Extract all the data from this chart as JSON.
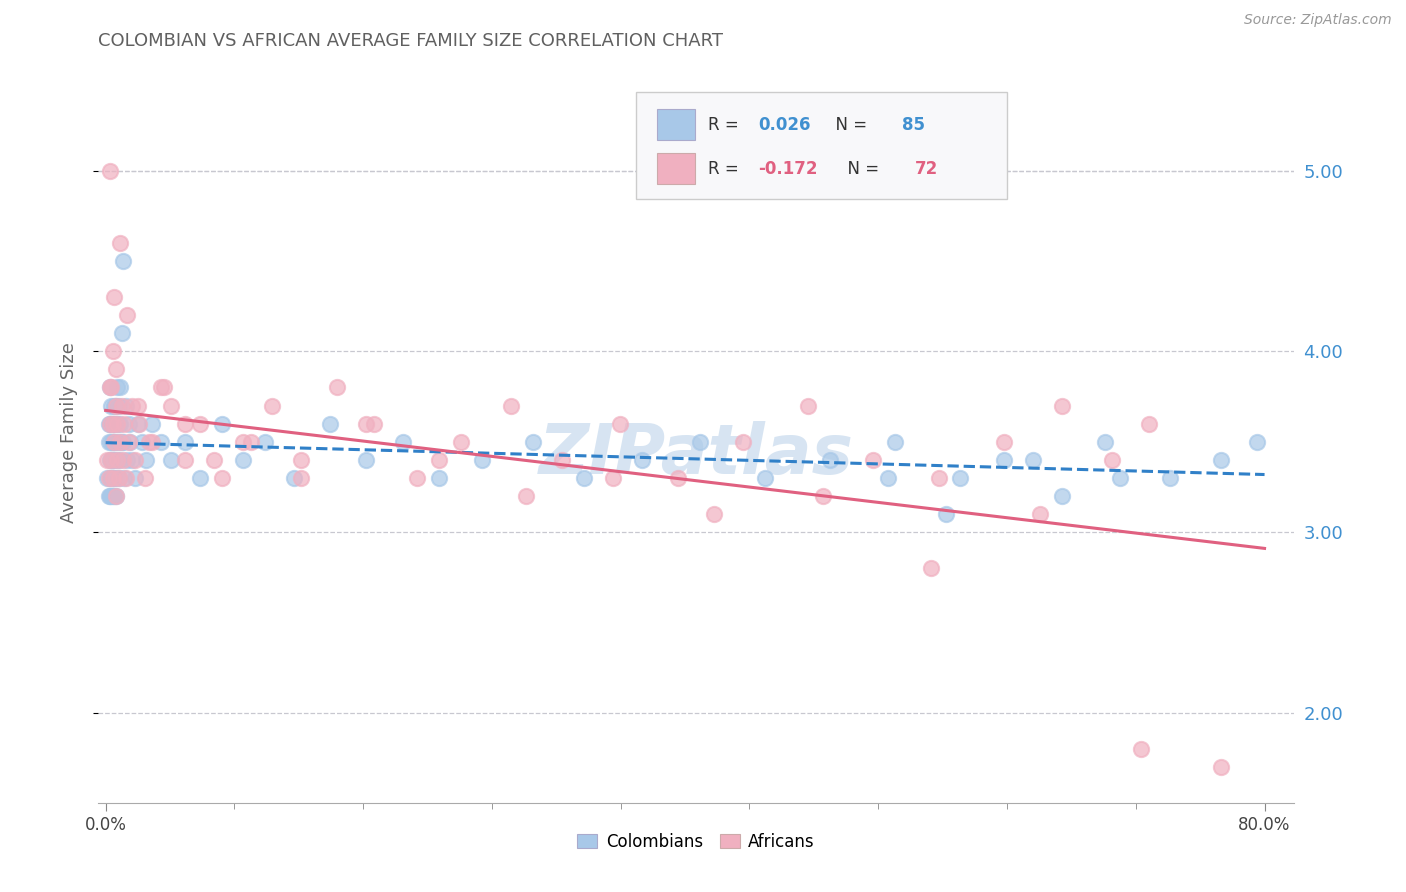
{
  "title": "COLOMBIAN VS AFRICAN AVERAGE FAMILY SIZE CORRELATION CHART",
  "source_text": "Source: ZipAtlas.com",
  "ylabel": "Average Family Size",
  "xlim": [
    -0.005,
    0.82
  ],
  "ylim": [
    1.5,
    5.6
  ],
  "yticks": [
    2.0,
    3.0,
    4.0,
    5.0
  ],
  "xtick_positions": [
    0.0,
    0.8
  ],
  "xtick_labels": [
    "0.0%",
    "80.0%"
  ],
  "right_ytick_labels": [
    "2.00",
    "3.00",
    "4.00",
    "5.00"
  ],
  "colombian_R": 0.026,
  "colombian_N": 85,
  "african_R": -0.172,
  "african_N": 72,
  "colombian_dot_color": "#a8c8e8",
  "african_dot_color": "#f0b0c0",
  "colombian_line_color": "#3080c8",
  "african_line_color": "#e06080",
  "title_color": "#606060",
  "axis_label_color": "#4090d0",
  "grid_color": "#c8c8d0",
  "background_color": "#ffffff",
  "watermark_color": "#d0e0f0",
  "colombian_x": [
    0.001,
    0.002,
    0.002,
    0.002,
    0.003,
    0.003,
    0.003,
    0.003,
    0.003,
    0.004,
    0.004,
    0.004,
    0.004,
    0.004,
    0.004,
    0.005,
    0.005,
    0.005,
    0.005,
    0.005,
    0.005,
    0.006,
    0.006,
    0.006,
    0.006,
    0.006,
    0.007,
    0.007,
    0.007,
    0.007,
    0.008,
    0.008,
    0.008,
    0.009,
    0.009,
    0.009,
    0.01,
    0.01,
    0.01,
    0.011,
    0.011,
    0.012,
    0.012,
    0.013,
    0.014,
    0.015,
    0.016,
    0.017,
    0.018,
    0.02,
    0.022,
    0.025,
    0.028,
    0.032,
    0.038,
    0.045,
    0.055,
    0.065,
    0.08,
    0.095,
    0.11,
    0.13,
    0.155,
    0.18,
    0.205,
    0.23,
    0.26,
    0.295,
    0.33,
    0.37,
    0.41,
    0.455,
    0.5,
    0.545,
    0.59,
    0.64,
    0.69,
    0.735,
    0.77,
    0.795,
    0.54,
    0.58,
    0.62,
    0.66,
    0.7
  ],
  "colombian_y": [
    3.3,
    3.2,
    3.5,
    3.6,
    3.4,
    3.2,
    3.6,
    3.8,
    3.3,
    3.5,
    3.3,
    3.6,
    3.2,
    3.4,
    3.7,
    3.3,
    3.5,
    3.2,
    3.6,
    3.4,
    3.3,
    3.5,
    3.7,
    3.2,
    3.4,
    3.6,
    3.3,
    3.5,
    3.7,
    3.2,
    3.4,
    3.6,
    3.8,
    3.3,
    3.5,
    3.7,
    3.4,
    3.6,
    3.8,
    3.5,
    4.1,
    3.5,
    4.5,
    3.3,
    3.7,
    3.4,
    3.6,
    3.5,
    3.4,
    3.3,
    3.6,
    3.5,
    3.4,
    3.6,
    3.5,
    3.4,
    3.5,
    3.3,
    3.6,
    3.4,
    3.5,
    3.3,
    3.6,
    3.4,
    3.5,
    3.3,
    3.4,
    3.5,
    3.3,
    3.4,
    3.5,
    3.3,
    3.4,
    3.5,
    3.3,
    3.4,
    3.5,
    3.3,
    3.4,
    3.5,
    3.3,
    3.1,
    3.4,
    3.2,
    3.3
  ],
  "african_x": [
    0.001,
    0.002,
    0.003,
    0.003,
    0.004,
    0.004,
    0.005,
    0.005,
    0.006,
    0.006,
    0.007,
    0.007,
    0.008,
    0.008,
    0.009,
    0.01,
    0.011,
    0.012,
    0.013,
    0.014,
    0.016,
    0.018,
    0.02,
    0.023,
    0.027,
    0.032,
    0.038,
    0.045,
    0.055,
    0.065,
    0.08,
    0.095,
    0.115,
    0.135,
    0.16,
    0.185,
    0.215,
    0.245,
    0.28,
    0.315,
    0.355,
    0.395,
    0.44,
    0.485,
    0.53,
    0.575,
    0.62,
    0.66,
    0.695,
    0.72,
    0.003,
    0.005,
    0.007,
    0.01,
    0.015,
    0.022,
    0.03,
    0.04,
    0.055,
    0.075,
    0.1,
    0.135,
    0.18,
    0.23,
    0.29,
    0.35,
    0.42,
    0.495,
    0.57,
    0.645,
    0.715,
    0.77
  ],
  "african_y": [
    3.4,
    3.3,
    5.0,
    3.6,
    3.8,
    3.4,
    3.3,
    3.6,
    4.3,
    3.5,
    3.2,
    3.7,
    3.4,
    3.6,
    3.3,
    3.5,
    3.7,
    3.4,
    3.6,
    3.3,
    3.5,
    3.7,
    3.4,
    3.6,
    3.3,
    3.5,
    3.8,
    3.7,
    3.4,
    3.6,
    3.3,
    3.5,
    3.7,
    3.4,
    3.8,
    3.6,
    3.3,
    3.5,
    3.7,
    3.4,
    3.6,
    3.3,
    3.5,
    3.7,
    3.4,
    3.3,
    3.5,
    3.7,
    3.4,
    3.6,
    3.8,
    4.0,
    3.9,
    4.6,
    4.2,
    3.7,
    3.5,
    3.8,
    3.6,
    3.4,
    3.5,
    3.3,
    3.6,
    3.4,
    3.2,
    3.3,
    3.1,
    3.2,
    2.8,
    3.1,
    1.8,
    1.7
  ]
}
